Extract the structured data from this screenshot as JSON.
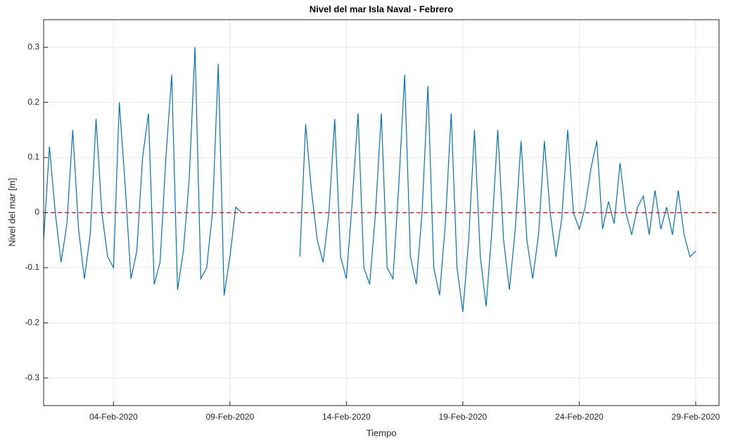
{
  "chart_data": {
    "type": "line",
    "title": "Nivel del mar Isla Naval - Febrero",
    "xlabel": "Tiempo",
    "ylabel": "Nivel del mar [m]",
    "x": [
      1,
      1.25,
      1.5,
      1.75,
      2,
      2.25,
      2.5,
      2.75,
      3,
      3.25,
      3.5,
      3.75,
      4,
      4.25,
      4.5,
      4.75,
      5,
      5.25,
      5.5,
      5.75,
      6,
      6.25,
      6.5,
      6.75,
      7,
      7.25,
      7.5,
      7.75,
      8,
      8.25,
      8.5,
      8.75,
      9,
      9.25,
      9.5,
      9.75,
      10,
      10.25,
      10.5,
      10.75,
      11,
      11.25,
      11.5,
      11.75,
      12,
      12.25,
      12.5,
      12.75,
      13,
      13.25,
      13.5,
      13.75,
      14,
      14.25,
      14.5,
      14.75,
      15,
      15.25,
      15.5,
      15.75,
      16,
      16.25,
      16.5,
      16.75,
      17,
      17.25,
      17.5,
      17.75,
      18,
      18.25,
      18.5,
      18.75,
      19,
      19.25,
      19.5,
      19.75,
      20,
      20.25,
      20.5,
      20.75,
      21,
      21.25,
      21.5,
      21.75,
      22,
      22.25,
      22.5,
      22.75,
      23,
      23.25,
      23.5,
      23.75,
      24,
      24.25,
      24.5,
      24.75,
      25,
      25.25,
      25.5,
      25.75,
      26,
      26.25,
      26.5,
      26.75,
      27,
      27.25,
      27.5,
      27.75,
      28,
      28.25,
      28.5,
      28.75,
      29
    ],
    "series": [
      {
        "name": "Nivel del mar",
        "color": "#0072bd",
        "values": [
          -0.05,
          0.12,
          0.0,
          -0.09,
          -0.02,
          0.15,
          -0.03,
          -0.12,
          -0.04,
          0.17,
          0.0,
          -0.08,
          -0.1,
          0.2,
          0.05,
          -0.12,
          -0.07,
          0.1,
          0.18,
          -0.13,
          -0.09,
          0.1,
          0.25,
          -0.14,
          -0.07,
          0.06,
          0.3,
          -0.12,
          -0.1,
          0.0,
          0.27,
          -0.15,
          -0.08,
          0.01,
          0.0,
          null,
          null,
          null,
          null,
          null,
          null,
          null,
          null,
          null,
          -0.08,
          0.16,
          0.04,
          -0.05,
          -0.09,
          0.0,
          0.17,
          -0.08,
          -0.12,
          0.02,
          0.18,
          -0.1,
          -0.13,
          0.0,
          0.18,
          -0.1,
          -0.12,
          0.05,
          0.25,
          -0.08,
          -0.13,
          0.0,
          0.23,
          -0.1,
          -0.15,
          -0.02,
          0.18,
          -0.1,
          -0.18,
          -0.05,
          0.15,
          -0.08,
          -0.17,
          -0.03,
          0.15,
          -0.05,
          -0.14,
          -0.03,
          0.13,
          -0.05,
          -0.12,
          -0.04,
          0.13,
          0.0,
          -0.08,
          -0.01,
          0.15,
          0.0,
          -0.03,
          0.01,
          0.08,
          0.13,
          -0.03,
          0.02,
          -0.02,
          0.09,
          0.0,
          -0.04,
          0.01,
          0.03,
          -0.04,
          0.04,
          -0.03,
          0.01,
          -0.04,
          0.04,
          -0.04,
          -0.08,
          -0.07
        ]
      }
    ],
    "hline": {
      "value": 0,
      "color": "#ff0000",
      "style": "dashed"
    },
    "xlim": [
      1,
      30
    ],
    "xticks": [
      {
        "value": 4,
        "label": "04-Feb-2020"
      },
      {
        "value": 9,
        "label": "09-Feb-2020"
      },
      {
        "value": 14,
        "label": "14-Feb-2020"
      },
      {
        "value": 19,
        "label": "19-Feb-2020"
      },
      {
        "value": 24,
        "label": "24-Feb-2020"
      },
      {
        "value": 29,
        "label": "29-Feb-2020"
      }
    ],
    "ylim": [
      -0.35,
      0.35
    ],
    "yticks": [
      -0.3,
      -0.2,
      -0.1,
      0,
      0.1,
      0.2,
      0.3
    ],
    "grid": true
  }
}
